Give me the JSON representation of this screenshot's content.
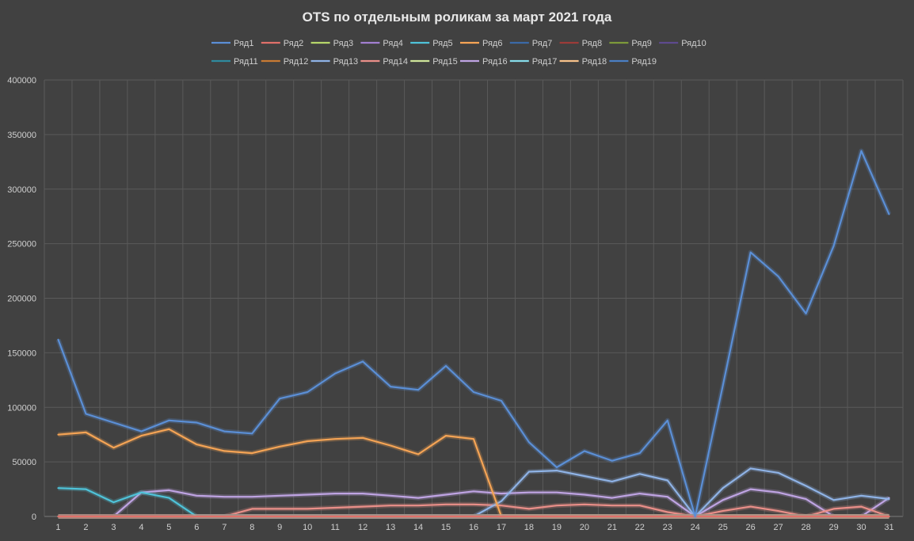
{
  "chart_data": {
    "type": "line",
    "title": "OTS по отдельным роликам за март 2021 года",
    "xlabel": "",
    "ylabel": "",
    "ylim": [
      0,
      400000
    ],
    "y_ticks": [
      "0",
      "50000",
      "100000",
      "150000",
      "200000",
      "250000",
      "300000",
      "350000",
      "400000"
    ],
    "y_tick_values": [
      0,
      50000,
      100000,
      150000,
      200000,
      250000,
      300000,
      350000,
      400000
    ],
    "x": [
      1,
      2,
      3,
      4,
      5,
      6,
      7,
      8,
      9,
      10,
      11,
      12,
      13,
      14,
      15,
      16,
      17,
      18,
      19,
      20,
      21,
      22,
      23,
      24,
      25,
      26,
      27,
      28,
      29,
      30,
      31
    ],
    "grid": true,
    "legend_position": "top",
    "series": [
      {
        "name": "Ряд1",
        "color": "#5b8fd6",
        "values": [
          162000,
          94000,
          86000,
          78000,
          88000,
          86000,
          78000,
          76000,
          108000,
          114000,
          131000,
          142000,
          119000,
          116000,
          138000,
          114000,
          106000,
          68000,
          45000,
          60000,
          51000,
          58000,
          88000,
          0,
          120000,
          242000,
          220000,
          186000,
          248000,
          335000,
          277000
        ]
      },
      {
        "name": "Ряд2",
        "color": "#e0706a",
        "values": [
          0,
          0,
          0,
          0,
          0,
          0,
          0,
          0,
          0,
          0,
          0,
          0,
          0,
          0,
          0,
          0,
          0,
          0,
          0,
          0,
          0,
          0,
          0,
          0,
          0,
          0,
          0,
          0,
          0,
          0,
          0
        ]
      },
      {
        "name": "Ряд3",
        "color": "#b6d66a",
        "values": [
          0,
          0,
          0,
          0,
          0,
          0,
          0,
          0,
          0,
          0,
          0,
          0,
          0,
          0,
          0,
          0,
          0,
          0,
          0,
          0,
          0,
          0,
          0,
          0,
          0,
          0,
          0,
          0,
          0,
          0,
          0
        ]
      },
      {
        "name": "Ряд4",
        "color": "#a27fd1",
        "values": [
          0,
          0,
          0,
          0,
          0,
          0,
          0,
          0,
          0,
          0,
          0,
          0,
          0,
          0,
          0,
          0,
          0,
          0,
          0,
          0,
          0,
          0,
          0,
          0,
          0,
          0,
          0,
          0,
          0,
          0,
          0
        ]
      },
      {
        "name": "Ряд5",
        "color": "#4fc3d9",
        "values": [
          26000,
          25000,
          13000,
          22000,
          17000,
          0,
          0,
          0,
          0,
          0,
          0,
          0,
          0,
          0,
          0,
          0,
          0,
          0,
          0,
          0,
          0,
          0,
          0,
          0,
          0,
          0,
          0,
          0,
          0,
          0,
          0
        ]
      },
      {
        "name": "Ряд6",
        "color": "#f5a455",
        "values": [
          75000,
          77000,
          63000,
          74000,
          80000,
          66000,
          60000,
          58000,
          64000,
          69000,
          71000,
          72000,
          65000,
          57000,
          74000,
          71000,
          0,
          0,
          0,
          0,
          0,
          0,
          0,
          0,
          0,
          0,
          0,
          0,
          0,
          0,
          0
        ]
      },
      {
        "name": "Ряд7",
        "color": "#3b6aa8",
        "values": [
          0,
          0,
          0,
          0,
          0,
          0,
          0,
          0,
          0,
          0,
          0,
          0,
          0,
          0,
          0,
          0,
          0,
          0,
          0,
          0,
          0,
          0,
          0,
          0,
          0,
          0,
          0,
          0,
          0,
          0,
          0
        ]
      },
      {
        "name": "Ряд8",
        "color": "#9c3b38",
        "values": [
          0,
          0,
          0,
          0,
          0,
          0,
          0,
          0,
          0,
          0,
          0,
          0,
          0,
          0,
          0,
          0,
          0,
          0,
          0,
          0,
          0,
          0,
          0,
          0,
          0,
          0,
          0,
          0,
          0,
          0,
          0
        ]
      },
      {
        "name": "Ряд9",
        "color": "#7d9a3a",
        "values": [
          0,
          0,
          0,
          0,
          0,
          0,
          0,
          0,
          0,
          0,
          0,
          0,
          0,
          0,
          0,
          0,
          0,
          0,
          0,
          0,
          0,
          0,
          0,
          0,
          0,
          0,
          0,
          0,
          0,
          0,
          0
        ]
      },
      {
        "name": "Ряд10",
        "color": "#5e4a8f",
        "values": [
          0,
          0,
          0,
          0,
          0,
          0,
          0,
          0,
          0,
          0,
          0,
          0,
          0,
          0,
          0,
          0,
          0,
          0,
          0,
          0,
          0,
          0,
          0,
          0,
          0,
          0,
          0,
          0,
          0,
          0,
          0
        ]
      },
      {
        "name": "Ряд11",
        "color": "#2f8a9e",
        "values": [
          0,
          0,
          0,
          0,
          0,
          0,
          0,
          0,
          0,
          0,
          0,
          0,
          0,
          0,
          0,
          0,
          0,
          0,
          0,
          0,
          0,
          0,
          0,
          0,
          0,
          0,
          0,
          0,
          0,
          0,
          0
        ]
      },
      {
        "name": "Ряд12",
        "color": "#c97a33",
        "values": [
          0,
          0,
          0,
          0,
          0,
          0,
          0,
          0,
          0,
          0,
          0,
          0,
          0,
          0,
          0,
          0,
          0,
          0,
          0,
          0,
          0,
          0,
          0,
          0,
          0,
          0,
          0,
          0,
          0,
          0,
          0
        ]
      },
      {
        "name": "Ряд13",
        "color": "#8fb3e6",
        "values": [
          0,
          0,
          0,
          0,
          0,
          0,
          0,
          0,
          0,
          0,
          0,
          0,
          0,
          0,
          0,
          0,
          14000,
          41000,
          42000,
          37000,
          32000,
          39000,
          33000,
          0,
          26000,
          44000,
          40000,
          28000,
          15000,
          19000,
          16000
        ]
      },
      {
        "name": "Ряд14",
        "color": "#ea8f89",
        "values": [
          0,
          0,
          0,
          0,
          0,
          0,
          0,
          7000,
          7000,
          7000,
          8000,
          9000,
          10000,
          10000,
          11000,
          11000,
          10000,
          7000,
          10000,
          11000,
          10000,
          10000,
          4000,
          0,
          5000,
          9000,
          5000,
          0,
          7000,
          9000,
          0
        ]
      },
      {
        "name": "Ряд15",
        "color": "#cfe59a",
        "values": [
          0,
          0,
          0,
          0,
          0,
          0,
          0,
          0,
          0,
          0,
          0,
          0,
          0,
          0,
          0,
          0,
          0,
          0,
          0,
          0,
          0,
          0,
          0,
          0,
          0,
          0,
          0,
          0,
          0,
          0,
          0
        ]
      },
      {
        "name": "Ряд16",
        "color": "#bfa4e3",
        "values": [
          0,
          0,
          0,
          22000,
          24000,
          19000,
          18000,
          18000,
          19000,
          20000,
          21000,
          21000,
          19000,
          17000,
          20000,
          23000,
          21000,
          22000,
          22000,
          20000,
          17000,
          21000,
          18000,
          0,
          15000,
          25000,
          22000,
          16000,
          0,
          0,
          17000
        ]
      },
      {
        "name": "Ряд17",
        "color": "#86dcea",
        "values": [
          0,
          0,
          0,
          0,
          0,
          0,
          0,
          0,
          0,
          0,
          0,
          0,
          0,
          0,
          0,
          0,
          0,
          0,
          0,
          0,
          0,
          0,
          0,
          0,
          0,
          0,
          0,
          0,
          0,
          0,
          0
        ]
      },
      {
        "name": "Ряд18",
        "color": "#f8c28a",
        "values": [
          0,
          0,
          0,
          0,
          0,
          0,
          0,
          0,
          0,
          0,
          0,
          0,
          0,
          0,
          0,
          0,
          0,
          0,
          0,
          0,
          0,
          0,
          0,
          0,
          0,
          0,
          0,
          0,
          0,
          0,
          0
        ]
      },
      {
        "name": "Ряд19",
        "color": "#4a7fc4",
        "values": [
          0,
          0,
          0,
          0,
          0,
          0,
          0,
          0,
          0,
          0,
          0,
          0,
          0,
          0,
          0,
          0,
          0,
          0,
          0,
          0,
          0,
          0,
          0,
          0,
          0,
          0,
          0,
          0,
          0,
          0,
          0
        ]
      }
    ]
  }
}
